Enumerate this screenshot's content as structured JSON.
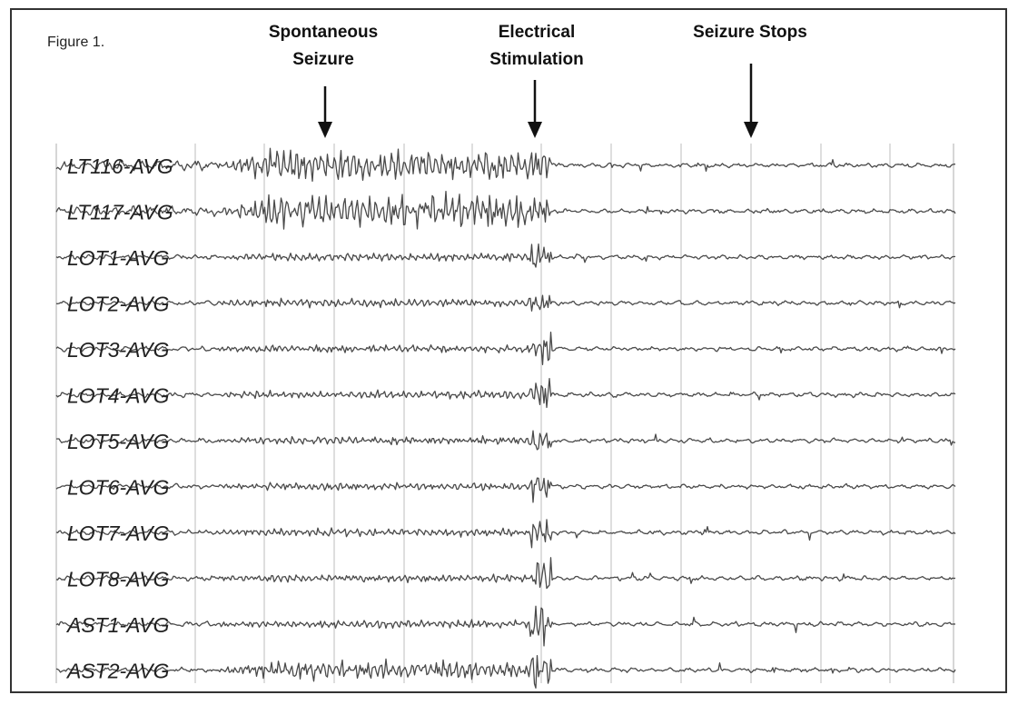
{
  "figure": {
    "caption": "Figure 1."
  },
  "annotations": [
    {
      "id": "spontaneous",
      "lines": [
        "Spontaneous",
        "Seizure"
      ]
    },
    {
      "id": "stimulation",
      "lines": [
        "Electrical",
        "Stimulation"
      ]
    },
    {
      "id": "stops",
      "lines": [
        "Seizure Stops"
      ]
    }
  ],
  "channels": [
    {
      "label": "LT116-AVG",
      "activity": "high",
      "stim_spike": "medium"
    },
    {
      "label": "LT117-AVG",
      "activity": "high",
      "stim_spike": "medium"
    },
    {
      "label": "LOT1-AVG",
      "activity": "low",
      "stim_spike": "medium"
    },
    {
      "label": "LOT2-AVG",
      "activity": "low",
      "stim_spike": "medium"
    },
    {
      "label": "LOT3-AVG",
      "activity": "low",
      "stim_spike": "medium"
    },
    {
      "label": "LOT4-AVG",
      "activity": "low",
      "stim_spike": "medium"
    },
    {
      "label": "LOT5-AVG",
      "activity": "low",
      "stim_spike": "medium"
    },
    {
      "label": "LOT6-AVG",
      "activity": "low",
      "stim_spike": "medium"
    },
    {
      "label": "LOT7-AVG",
      "activity": "low",
      "stim_spike": "medium"
    },
    {
      "label": "LOT8-AVG",
      "activity": "low",
      "stim_spike": "large"
    },
    {
      "label": "AST1-AVG",
      "activity": "low",
      "stim_spike": "large"
    },
    {
      "label": "AST2-AVG",
      "activity": "medium",
      "stim_spike": "large"
    }
  ],
  "colors": {
    "trace": "#4a4a4a",
    "label": "#222222",
    "gridline": "#c9c9c9",
    "border": "#333333",
    "annotation": "#111111"
  }
}
